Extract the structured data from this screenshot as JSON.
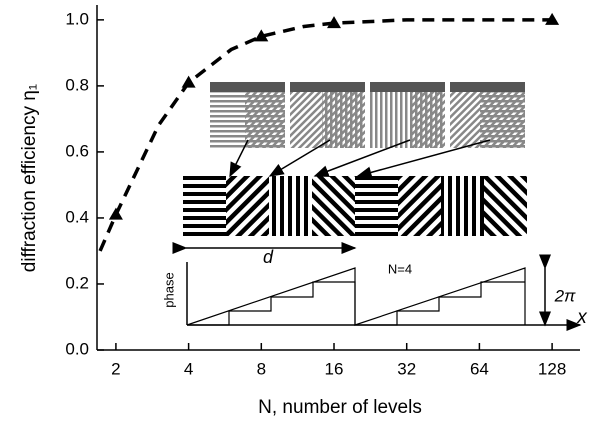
{
  "chart_data": {
    "type": "scatter",
    "xlabel": "N, number of levels",
    "ylabel": "diffraction efficiency η₁",
    "x_scale": "log2",
    "xlim": [
      1.67,
      167
    ],
    "ylim": [
      0,
      1.045
    ],
    "xticks": [
      2,
      4,
      8,
      16,
      32,
      64,
      128
    ],
    "yticks": [
      {
        "value": 0,
        "label": "0.0"
      },
      0.2,
      0.4,
      0.6,
      0.8,
      {
        "value": 1,
        "label": "1.0"
      }
    ],
    "series": [
      {
        "type": "line",
        "color": "#000000",
        "dashed": true,
        "x": [
          1.72,
          2,
          3,
          4,
          6,
          8,
          12,
          16,
          32,
          64,
          128
        ],
        "values": [
          0.3,
          0.41,
          0.68,
          0.81,
          0.91,
          0.95,
          0.98,
          0.99,
          1.0,
          1.0,
          1.0
        ]
      },
      {
        "type": "scatter",
        "color": "#000000",
        "marker": "triangle",
        "x": [
          2,
          4,
          8,
          16,
          128
        ],
        "values": [
          0.41,
          0.81,
          0.95,
          0.99,
          1.0
        ]
      }
    ],
    "inset_labels": [
      "d",
      "phase",
      "N=4",
      "2π",
      "x"
    ]
  }
}
